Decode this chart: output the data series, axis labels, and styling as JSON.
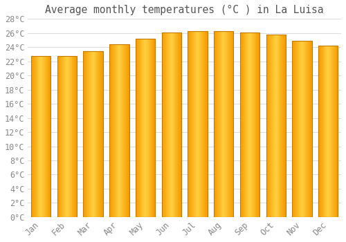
{
  "title": "Average monthly temperatures (°C ) in La Luisa",
  "months": [
    "Jan",
    "Feb",
    "Mar",
    "Apr",
    "May",
    "Jun",
    "Jul",
    "Aug",
    "Sep",
    "Oct",
    "Nov",
    "Dec"
  ],
  "temperatures": [
    22.8,
    22.8,
    23.4,
    24.4,
    25.2,
    26.1,
    26.3,
    26.3,
    26.1,
    25.8,
    24.9,
    24.2
  ],
  "bar_color_left": "#F59B00",
  "bar_color_center": "#FFD040",
  "bar_color_right": "#F59B00",
  "bar_edge_color": "#C87A00",
  "background_color": "#ffffff",
  "grid_color": "#dddddd",
  "ylim": [
    0,
    28
  ],
  "ytick_step": 2,
  "title_fontsize": 10.5,
  "tick_fontsize": 8.5,
  "tick_label_color": "#888888",
  "font_family": "monospace"
}
